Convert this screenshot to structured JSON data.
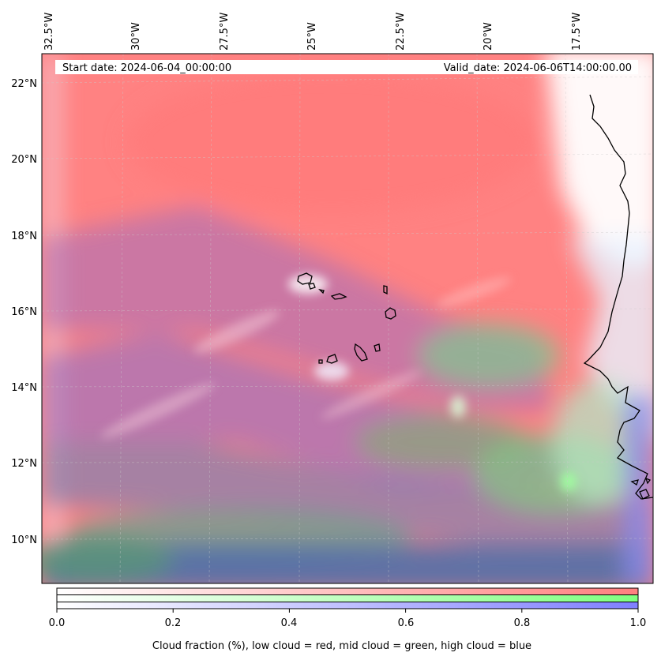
{
  "map": {
    "start_date": "Start date: 2024-06-04_00:00:00",
    "valid_date": "Valid_date: 2024-06-06T14:00:00.00",
    "lon_labels": [
      "32.5°W",
      "30°W",
      "27.5°W",
      "25°W",
      "22.5°W",
      "20°W",
      "17.5°W"
    ],
    "lat_labels": [
      "22°N",
      "20°N",
      "18°N",
      "16°N",
      "14°N",
      "12°N",
      "10°N"
    ],
    "colors": {
      "low_cloud": "#ff7f7f",
      "mid_cloud": "#80ff80",
      "high_cloud": "#7f7fff",
      "frame": "#000000"
    }
  },
  "colorbar": {
    "ticks": [
      "0.0",
      "0.2",
      "0.4",
      "0.6",
      "0.8",
      "1.0"
    ],
    "label": "Cloud fraction (%), low cloud = red, mid cloud = green, high cloud = blue"
  }
}
